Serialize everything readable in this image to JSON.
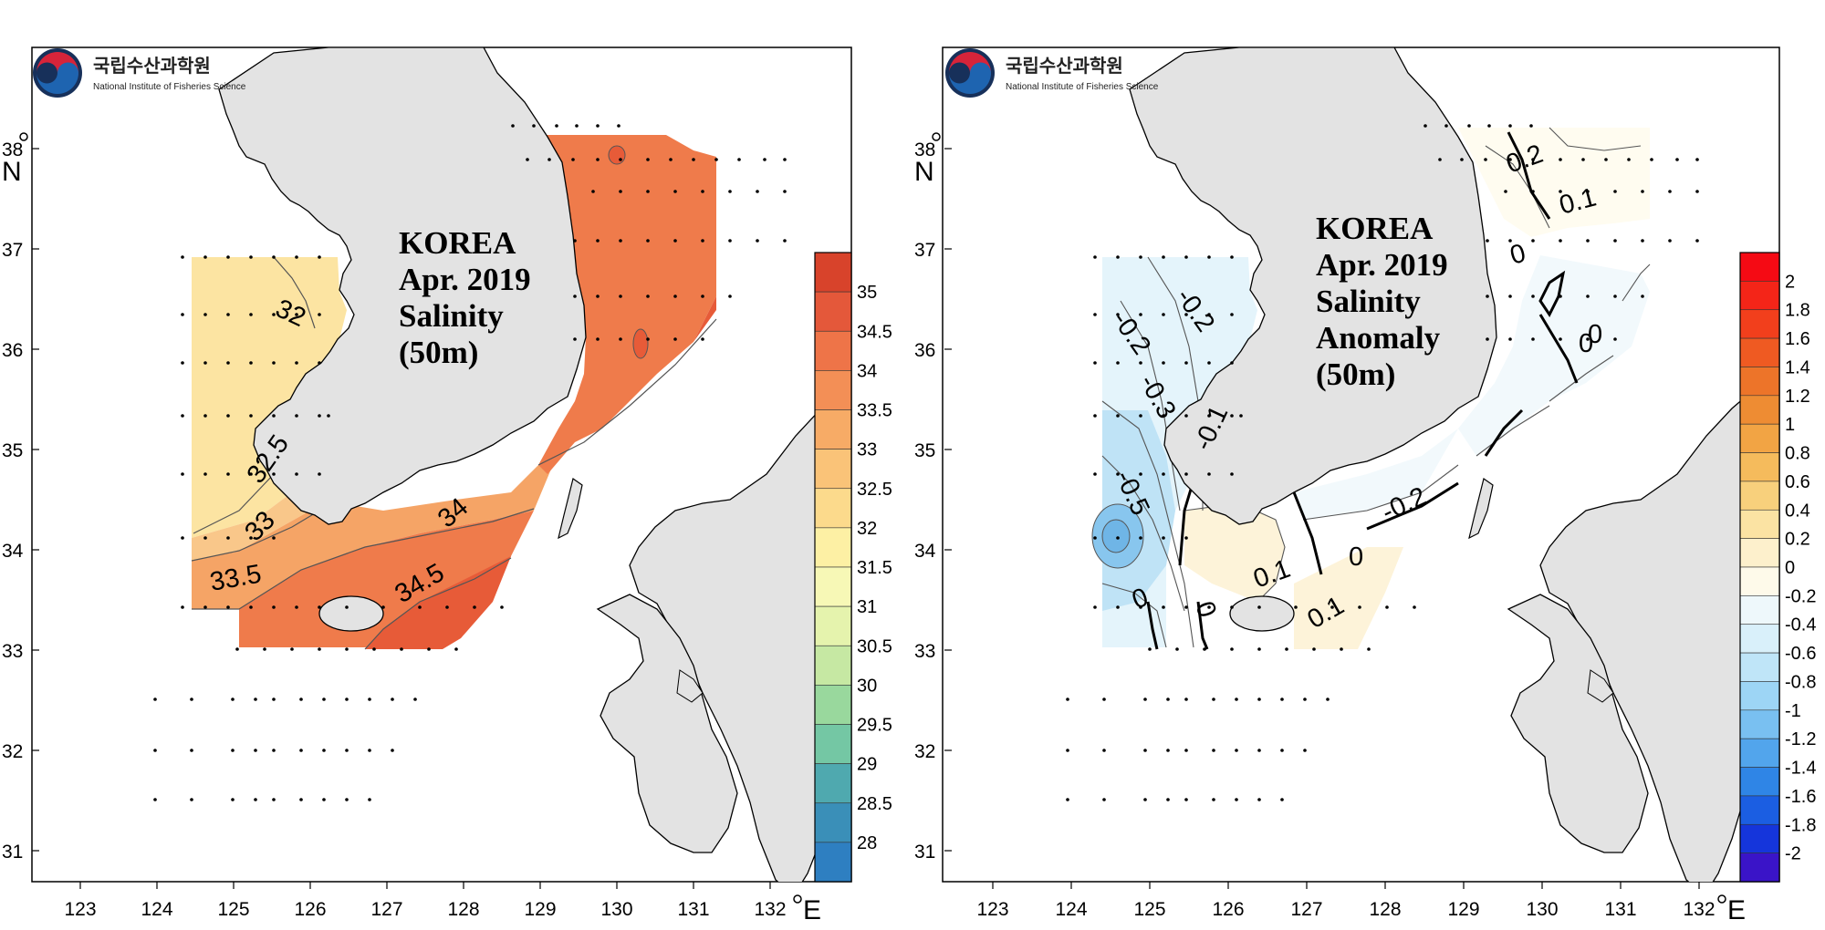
{
  "logo": {
    "korean": "국립수산과학원",
    "english": "National Institute of Fisheries Science"
  },
  "axis_units": {
    "lon": "E",
    "lat": "N"
  },
  "lon_ticks": [
    "123",
    "124",
    "125",
    "126",
    "127",
    "128",
    "129",
    "130",
    "131",
    "132"
  ],
  "lat_ticks": [
    "31",
    "32",
    "33",
    "34",
    "35",
    "36",
    "37",
    "38"
  ],
  "panels": {
    "left": {
      "title": [
        "KOREA",
        "Apr. 2019",
        "Salinity",
        "(50m)"
      ],
      "colorbar": {
        "labels": [
          "35",
          "34.5",
          "34",
          "33.5",
          "33",
          "32.5",
          "32",
          "31.5",
          "31",
          "30.5",
          "30",
          "29.5",
          "29",
          "28.5",
          "28"
        ],
        "colors": [
          "#d8432b",
          "#e4583a",
          "#ee7448",
          "#f38f56",
          "#f7ab66",
          "#fac378",
          "#fcda8c",
          "#fdf0a4",
          "#f7f8b6",
          "#e5f3ad",
          "#c6e8a3",
          "#99d89d",
          "#74c7a4",
          "#4fa9af",
          "#3a8fb8",
          "#2e7fc1"
        ]
      },
      "contour_labels": [
        "32",
        "32.5",
        "33",
        "33.5",
        "34",
        "34.5"
      ],
      "fill_colors": {
        "yellow": "#fce4a2",
        "light_orange": "#f9c78a",
        "orange": "#f5a466",
        "deep_orange": "#ef7b4b",
        "red": "#e75b38"
      }
    },
    "right": {
      "title": [
        "KOREA",
        "Apr. 2019",
        "Salinity",
        "Anomaly",
        "(50m)"
      ],
      "colorbar": {
        "labels": [
          "2",
          "1.8",
          "1.6",
          "1.4",
          "1.2",
          "1",
          "0.8",
          "0.6",
          "0.4",
          "0.2",
          "0",
          "-0.2",
          "-0.4",
          "-0.6",
          "-0.8",
          "-1",
          "-1.2",
          "-1.4",
          "-1.6",
          "-1.8",
          "-2"
        ],
        "colors": [
          "#f50a14",
          "#f42518",
          "#f23f1c",
          "#ef5a22",
          "#ed7429",
          "#ee8c33",
          "#f2a444",
          "#f5bb5c",
          "#f8d07c",
          "#fbe3a3",
          "#fdf0cc",
          "#fefaea",
          "#eef8fb",
          "#d9f0fa",
          "#bfe5f8",
          "#9dd5f5",
          "#79c0f1",
          "#52a5ec",
          "#2f85e6",
          "#1b5ee2",
          "#1535db",
          "#3a14c8"
        ]
      },
      "contour_labels": [
        "0.2",
        "0.1",
        "0",
        "0",
        "-0.2",
        "-0.2",
        "-0.3",
        "-0.1",
        "-0.5",
        "-0.2",
        "0",
        "0.1",
        "0",
        "0",
        "0.1",
        "0"
      ],
      "fill_colors": {
        "light_blue": "#e4f4fb",
        "mid_blue": "#bfe3f6",
        "deep_blue": "#88c6ee",
        "cream": "#fdf3d9",
        "pale": "#fffcf0"
      }
    }
  },
  "land_color": "#e3e3e3"
}
